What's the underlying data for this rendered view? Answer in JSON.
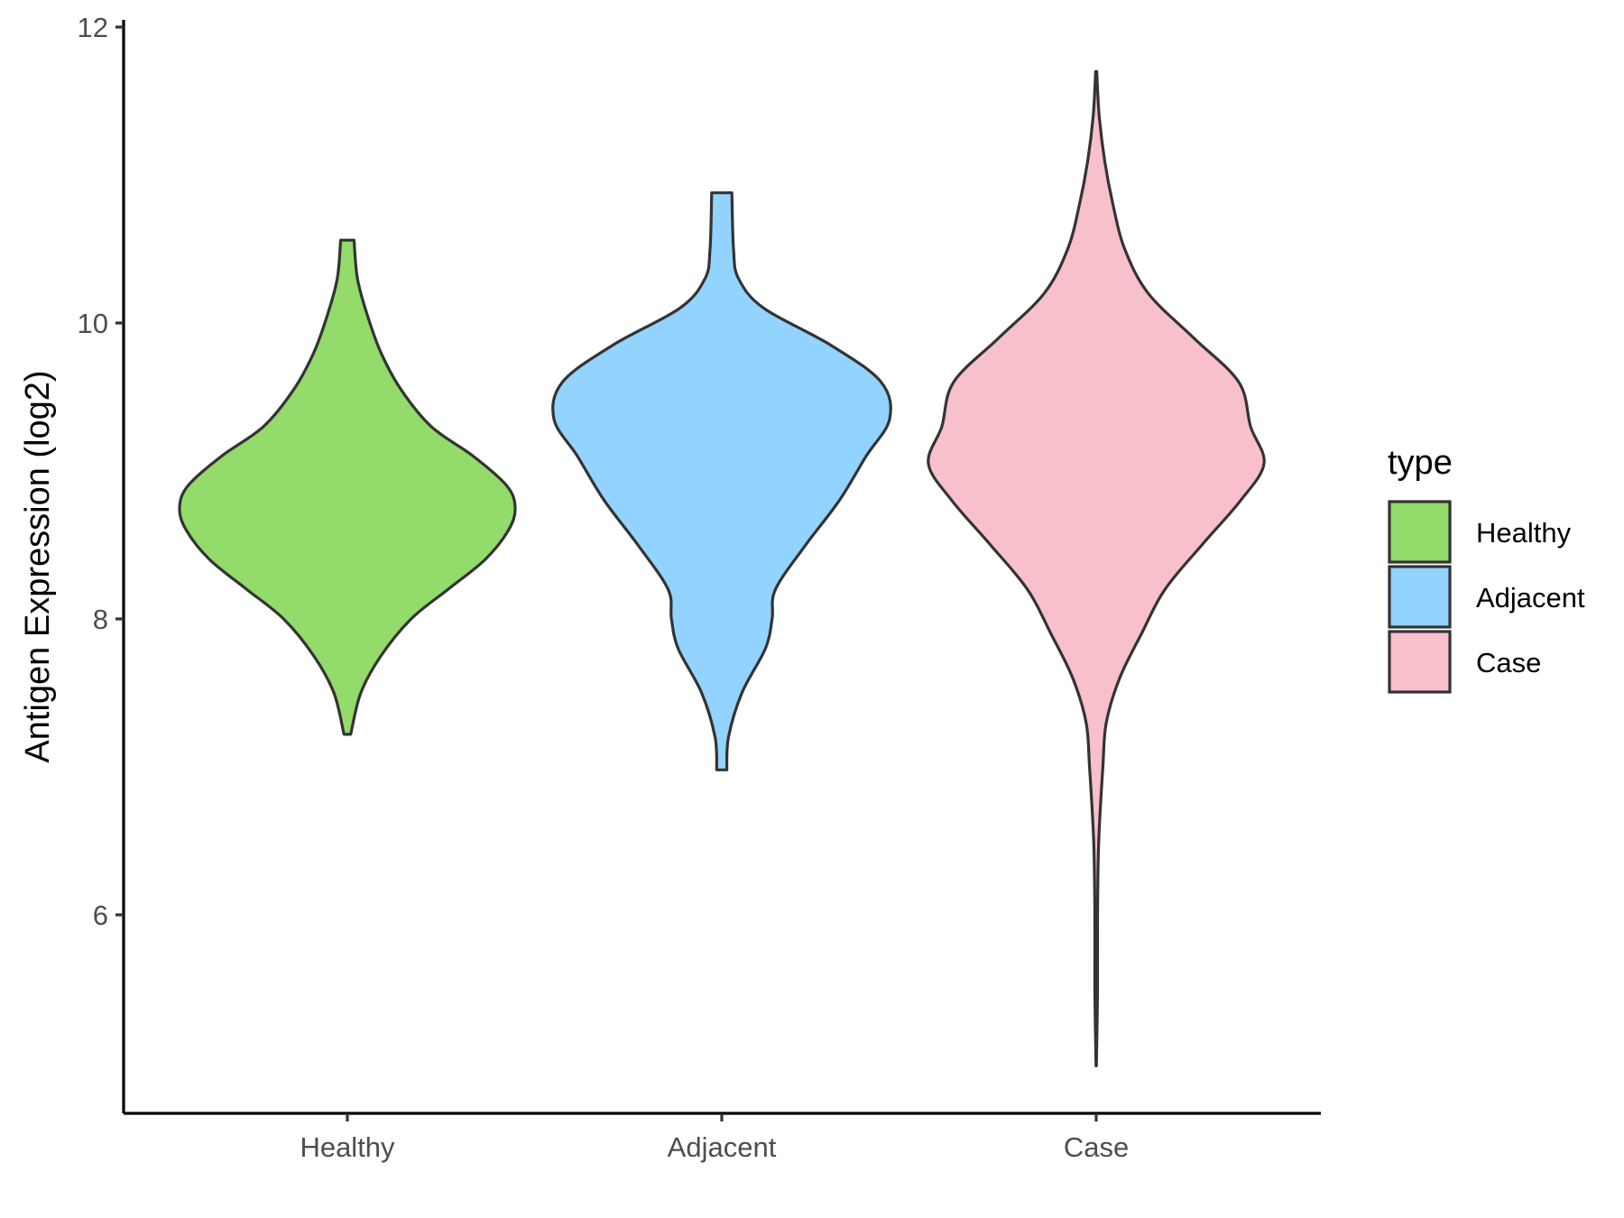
{
  "chart_data": {
    "type": "violin",
    "ylabel": "Antigen Expression (log2)",
    "xlabel": "",
    "categories": [
      "Healthy",
      "Adjacent",
      "Case"
    ],
    "y_ticks": [
      6,
      8,
      10,
      12
    ],
    "ylim": [
      4.7,
      12.05
    ],
    "grid": false,
    "legend": {
      "title": "type",
      "position": "right",
      "entries": [
        {
          "label": "Healthy",
          "color": "#93DB6A"
        },
        {
          "label": "Adjacent",
          "color": "#93D3FF"
        },
        {
          "label": "Case",
          "color": "#F8C0CB"
        }
      ]
    },
    "series": [
      {
        "category": "Healthy",
        "color": "#93DB6A",
        "density": [
          [
            7.22,
            0.02
          ],
          [
            7.5,
            0.08
          ],
          [
            7.75,
            0.2
          ],
          [
            8.0,
            0.38
          ],
          [
            8.2,
            0.6
          ],
          [
            8.4,
            0.82
          ],
          [
            8.6,
            0.96
          ],
          [
            8.75,
            1.0
          ],
          [
            8.9,
            0.95
          ],
          [
            9.1,
            0.75
          ],
          [
            9.3,
            0.5
          ],
          [
            9.55,
            0.32
          ],
          [
            9.8,
            0.2
          ],
          [
            10.05,
            0.12
          ],
          [
            10.3,
            0.06
          ],
          [
            10.56,
            0.04
          ]
        ]
      },
      {
        "category": "Adjacent",
        "color": "#93D3FF",
        "density": [
          [
            6.98,
            0.03
          ],
          [
            7.2,
            0.04
          ],
          [
            7.5,
            0.12
          ],
          [
            7.8,
            0.26
          ],
          [
            8.0,
            0.3
          ],
          [
            8.2,
            0.32
          ],
          [
            8.5,
            0.5
          ],
          [
            8.8,
            0.7
          ],
          [
            9.1,
            0.86
          ],
          [
            9.35,
            1.0
          ],
          [
            9.6,
            0.95
          ],
          [
            9.85,
            0.65
          ],
          [
            10.1,
            0.25
          ],
          [
            10.3,
            0.1
          ],
          [
            10.5,
            0.07
          ],
          [
            10.88,
            0.06
          ]
        ]
      },
      {
        "category": "Case",
        "color": "#F8C0CB",
        "density": [
          [
            4.98,
            0.001
          ],
          [
            5.5,
            0.008
          ],
          [
            6.0,
            0.008
          ],
          [
            6.5,
            0.015
          ],
          [
            7.0,
            0.04
          ],
          [
            7.3,
            0.06
          ],
          [
            7.6,
            0.14
          ],
          [
            7.9,
            0.27
          ],
          [
            8.2,
            0.41
          ],
          [
            8.5,
            0.63
          ],
          [
            8.8,
            0.86
          ],
          [
            9.05,
            1.0
          ],
          [
            9.3,
            0.92
          ],
          [
            9.6,
            0.85
          ],
          [
            9.9,
            0.58
          ],
          [
            10.2,
            0.31
          ],
          [
            10.5,
            0.17
          ],
          [
            10.8,
            0.1
          ],
          [
            11.1,
            0.05
          ],
          [
            11.4,
            0.018
          ],
          [
            11.7,
            0.003
          ]
        ]
      }
    ]
  }
}
